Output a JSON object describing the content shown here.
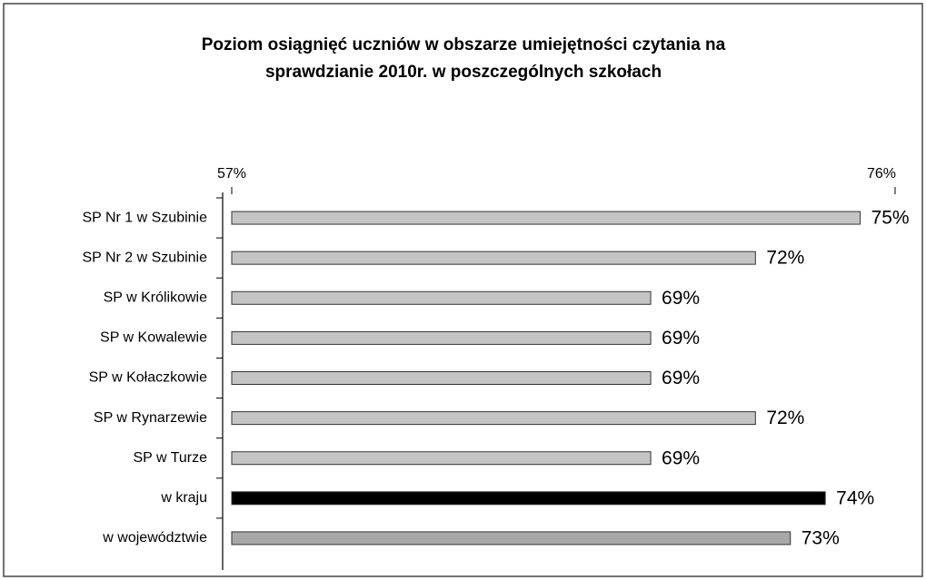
{
  "chart_data": {
    "type": "bar",
    "orientation": "horizontal",
    "title": [
      "Poziom osiągnięć uczniów w obszarze umiejętności czytania  na",
      "sprawdzianie 2010r.  w poszczególnych szkołach"
    ],
    "categories": [
      "SP Nr 1 w Szubinie",
      "SP Nr 2 w Szubinie",
      "SP w Królikowie",
      "SP w Kowalewie",
      "SP w Kołaczkowie",
      "SP w Rynarzewie",
      "SP w Turze",
      "w kraju",
      "w województwie"
    ],
    "values": [
      75,
      72,
      69,
      69,
      69,
      72,
      69,
      74,
      73
    ],
    "value_labels": [
      "75%",
      "72%",
      "69%",
      "69%",
      "69%",
      "72%",
      "69%",
      "74%",
      "73%"
    ],
    "colors": [
      "#c4c4c4",
      "#c4c4c4",
      "#c4c4c4",
      "#c4c4c4",
      "#c4c4c4",
      "#c4c4c4",
      "#c4c4c4",
      "#000000",
      "#a8a8a8"
    ],
    "xlim": [
      57,
      76
    ],
    "xticks": [
      {
        "value": 57,
        "label": "57%"
      },
      {
        "value": 76,
        "label": "76%"
      }
    ]
  }
}
